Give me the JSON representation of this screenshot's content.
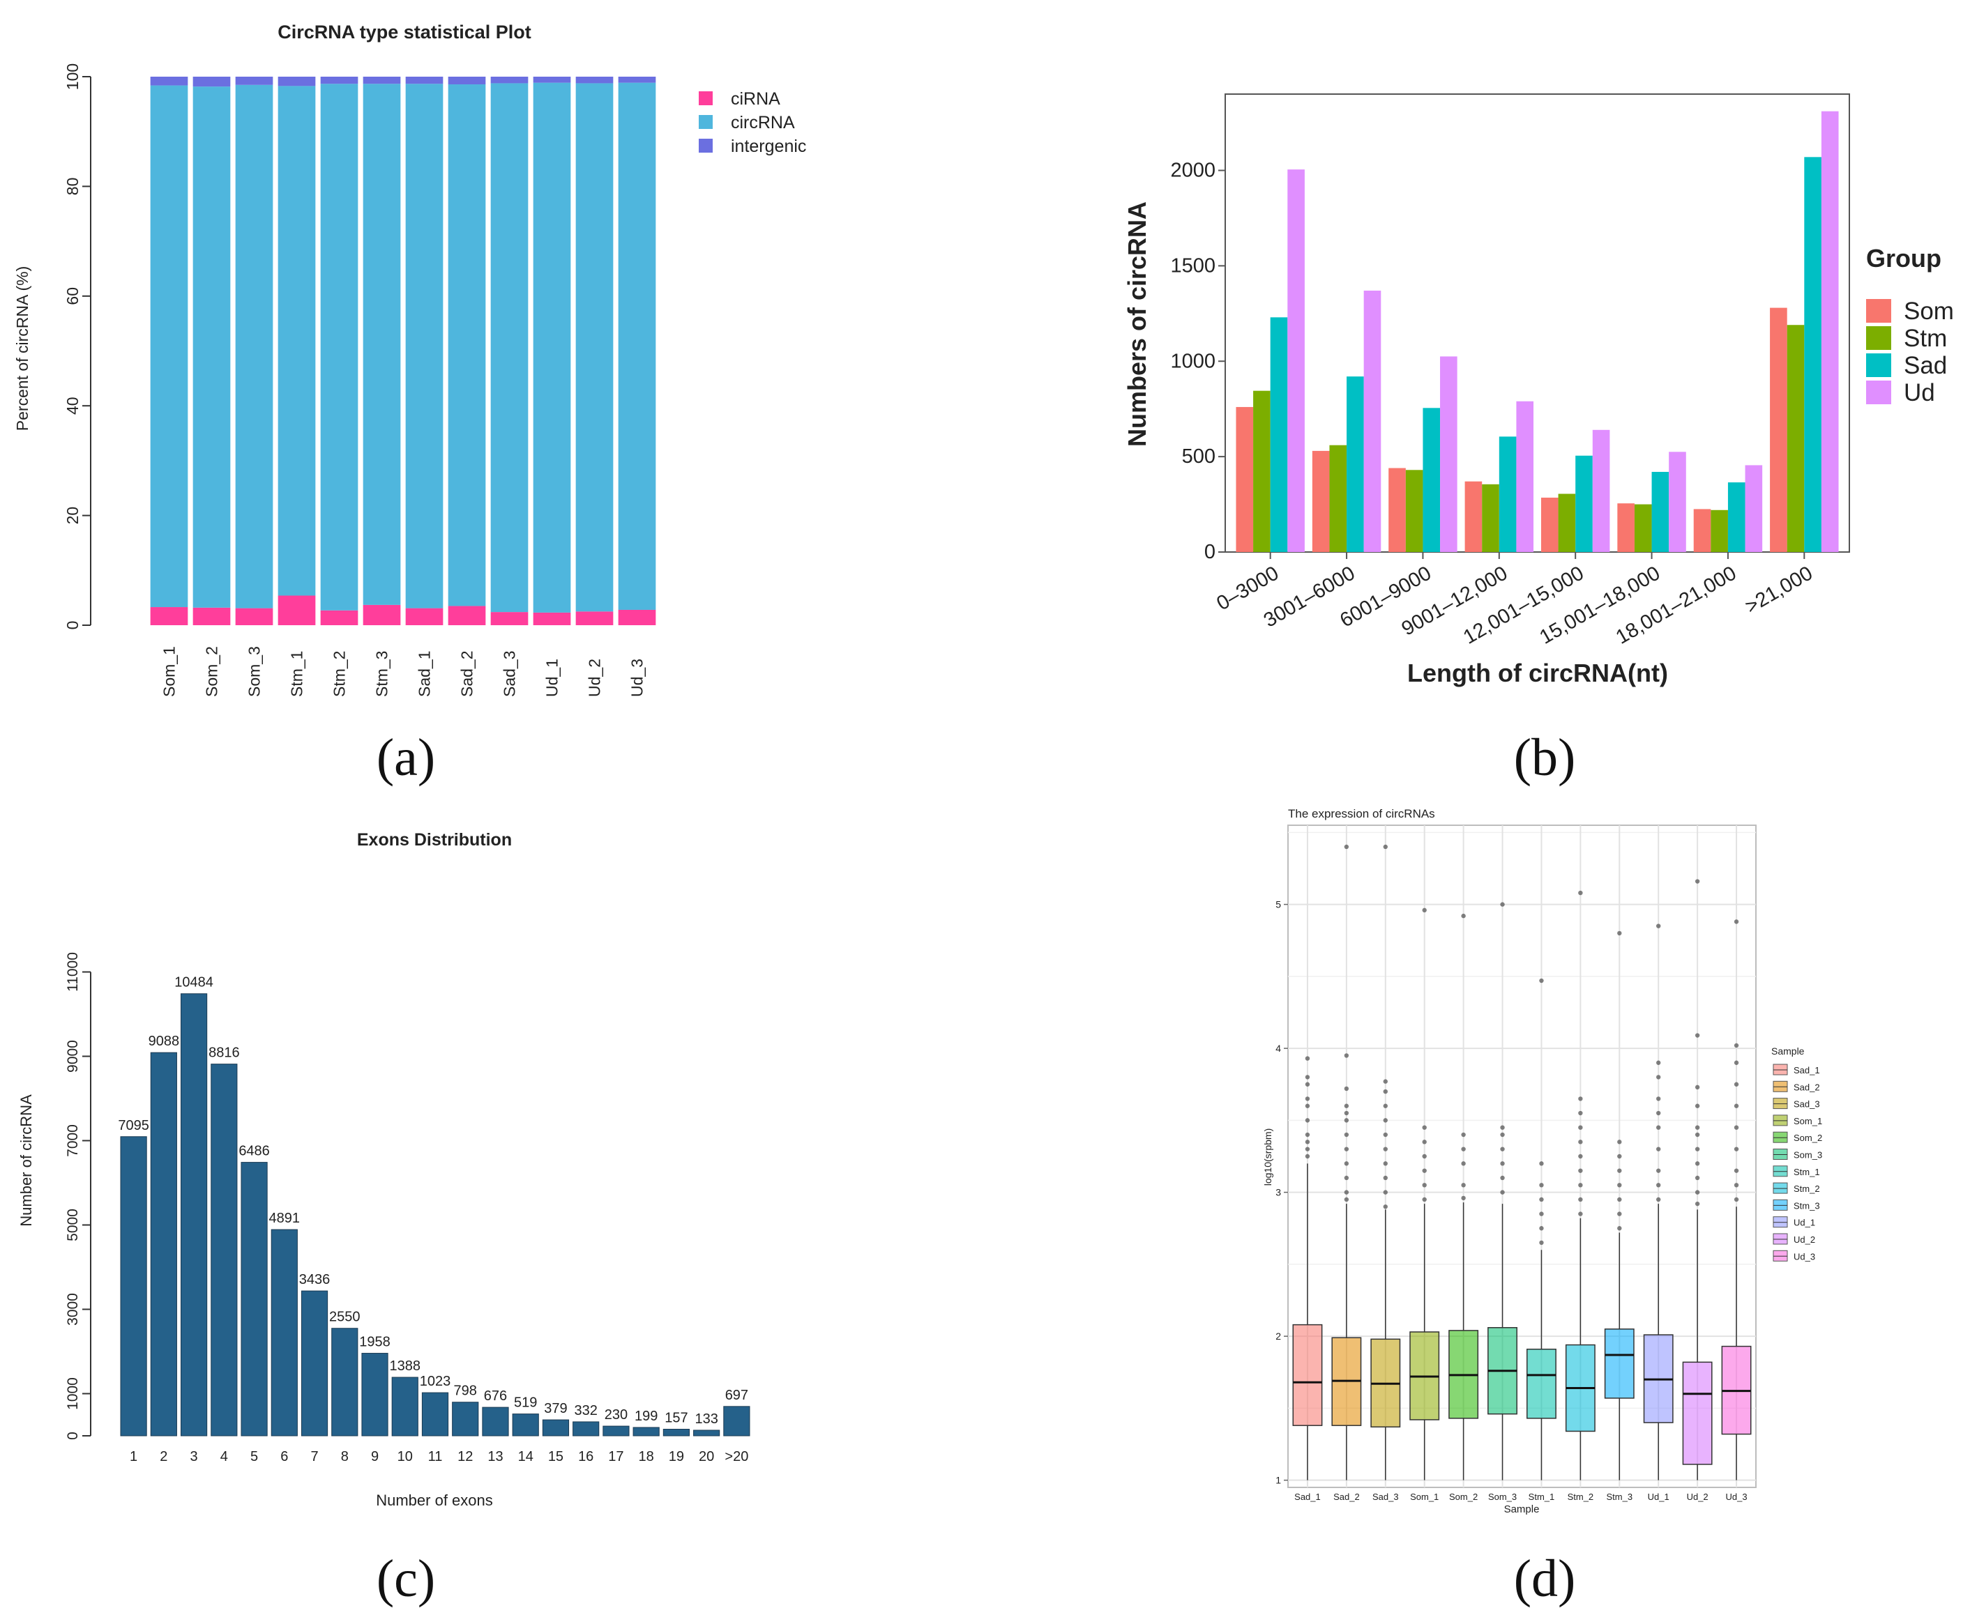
{
  "panels": {
    "a": {
      "label": "(a)"
    },
    "b": {
      "label": "(b)"
    },
    "c": {
      "label": "(c)"
    },
    "d": {
      "label": "(d)"
    }
  },
  "chart_data": [
    {
      "id": "a",
      "type": "bar",
      "stacked": true,
      "title": "CircRNA type statistical Plot",
      "xlabel": "",
      "ylabel": "Percent of circRNA (%)",
      "ylim": [
        0,
        100
      ],
      "yticks": [
        0,
        20,
        40,
        60,
        80,
        100
      ],
      "grid": false,
      "legend": "right",
      "categories": [
        "Som_1",
        "Som_2",
        "Som_3",
        "Stm_1",
        "Stm_2",
        "Stm_3",
        "Sad_1",
        "Sad_2",
        "Sad_3",
        "Ud_1",
        "Ud_2",
        "Ud_3"
      ],
      "series": [
        {
          "name": "ciRNA",
          "color": "#FF3E9B",
          "values": [
            3.3,
            3.2,
            3.1,
            5.4,
            2.7,
            3.7,
            3.1,
            3.5,
            2.4,
            2.3,
            2.5,
            2.8
          ]
        },
        {
          "name": "circRNA",
          "color": "#4FB6DD",
          "values": [
            95.1,
            95.0,
            95.4,
            92.9,
            96.0,
            95.0,
            95.6,
            95.1,
            96.4,
            96.6,
            96.3,
            96.1
          ]
        },
        {
          "name": "intergenic",
          "color": "#6B6FE0",
          "values": [
            1.6,
            1.8,
            1.5,
            1.7,
            1.3,
            1.3,
            1.3,
            1.4,
            1.2,
            1.1,
            1.2,
            1.1
          ]
        }
      ]
    },
    {
      "id": "b",
      "type": "bar",
      "title": "",
      "xlabel": "Length of circRNA(nt)",
      "ylabel": "Numbers of circRNA",
      "ylim": [
        0,
        2400
      ],
      "yticks": [
        0,
        500,
        1000,
        1500,
        2000
      ],
      "grid": false,
      "legend": "right",
      "legend_title": "Group",
      "categories": [
        "0–3000",
        "3001–6000",
        "6001–9000",
        "9001–12,000",
        "12,001–15,000",
        "15,001–18,000",
        "18,001–21,000",
        ">21,000"
      ],
      "series": [
        {
          "name": "Som",
          "color": "#F8766D",
          "values": [
            760,
            530,
            440,
            370,
            285,
            255,
            225,
            1280
          ]
        },
        {
          "name": "Stm",
          "color": "#7CAE00",
          "values": [
            845,
            560,
            430,
            355,
            305,
            250,
            220,
            1190
          ]
        },
        {
          "name": "Sad",
          "color": "#00BFC4",
          "values": [
            1230,
            920,
            755,
            605,
            505,
            420,
            365,
            2070
          ]
        },
        {
          "name": "Ud",
          "color": "#E08FFF",
          "values": [
            2005,
            1370,
            1025,
            790,
            640,
            525,
            455,
            2310
          ]
        }
      ]
    },
    {
      "id": "c",
      "type": "bar",
      "title": "Exons Distribution",
      "xlabel": "Number of exons",
      "ylabel": "Number of circRNA",
      "ylim": [
        0,
        12000
      ],
      "yticks": [
        0,
        1000,
        3000,
        5000,
        7000,
        9000,
        11000
      ],
      "grid": false,
      "color": "#25618A",
      "categories": [
        "1",
        "2",
        "3",
        "4",
        "5",
        "6",
        "7",
        "8",
        "9",
        "10",
        "11",
        "12",
        "13",
        "14",
        "15",
        "16",
        "17",
        "18",
        "19",
        "20",
        ">20"
      ],
      "values": [
        7095,
        9088,
        10484,
        8816,
        6486,
        4891,
        3436,
        2550,
        1958,
        1388,
        1023,
        798,
        676,
        519,
        379,
        332,
        230,
        199,
        157,
        133,
        697
      ],
      "data_labels": [
        "7095",
        "9088",
        "10484",
        "8816",
        "6486",
        "4891",
        "3436",
        "2550",
        "1958",
        "1388",
        "1023",
        "798",
        "676",
        "519",
        "379",
        "332",
        "230",
        "199",
        "157",
        "133",
        "697"
      ]
    },
    {
      "id": "d",
      "type": "box",
      "title": "The expression of circRNAs",
      "xlabel": "Sample",
      "ylabel": "log10(srpbm)",
      "ylim": [
        0.95,
        5.55
      ],
      "yticks": [
        1,
        2,
        3,
        4,
        5
      ],
      "grid": true,
      "legend": "right",
      "legend_title": "Sample",
      "categories": [
        "Sad_1",
        "Sad_2",
        "Sad_3",
        "Som_1",
        "Som_2",
        "Som_3",
        "Stm_1",
        "Stm_2",
        "Stm_3",
        "Ud_1",
        "Ud_2",
        "Ud_3"
      ],
      "series": [
        {
          "name": "Sad_1",
          "color": "#F8766D",
          "q1": 1.38,
          "median": 1.68,
          "q3": 2.08,
          "whisker_low": 1.0,
          "whisker_high": 3.2,
          "outliers": [
            3.25,
            3.3,
            3.35,
            3.4,
            3.5,
            3.6,
            3.65,
            3.75,
            3.8,
            3.93
          ]
        },
        {
          "name": "Sad_2",
          "color": "#E18A00",
          "q1": 1.38,
          "median": 1.69,
          "q3": 1.99,
          "whisker_low": 1.0,
          "whisker_high": 2.92,
          "outliers": [
            2.95,
            3.0,
            3.1,
            3.2,
            3.3,
            3.4,
            3.5,
            3.55,
            3.6,
            3.72,
            3.95,
            5.4
          ]
        },
        {
          "name": "Sad_3",
          "color": "#BE9C00",
          "q1": 1.37,
          "median": 1.67,
          "q3": 1.98,
          "whisker_low": 1.0,
          "whisker_high": 2.88,
          "outliers": [
            2.9,
            3.0,
            3.1,
            3.2,
            3.3,
            3.4,
            3.5,
            3.6,
            3.7,
            3.77,
            5.4
          ]
        },
        {
          "name": "Som_1",
          "color": "#8CAB00",
          "q1": 1.42,
          "median": 1.72,
          "q3": 2.03,
          "whisker_low": 1.0,
          "whisker_high": 2.92,
          "outliers": [
            2.95,
            3.05,
            3.15,
            3.25,
            3.35,
            3.45,
            4.96
          ]
        },
        {
          "name": "Som_2",
          "color": "#24B700",
          "q1": 1.43,
          "median": 1.73,
          "q3": 2.04,
          "whisker_low": 1.0,
          "whisker_high": 2.93,
          "outliers": [
            2.96,
            3.05,
            3.2,
            3.3,
            3.4,
            4.92
          ]
        },
        {
          "name": "Som_3",
          "color": "#00BE70",
          "q1": 1.46,
          "median": 1.76,
          "q3": 2.06,
          "whisker_low": 1.0,
          "whisker_high": 2.92,
          "outliers": [
            3.0,
            3.1,
            3.2,
            3.3,
            3.4,
            3.45,
            5.0
          ]
        },
        {
          "name": "Stm_1",
          "color": "#00C1AB",
          "q1": 1.43,
          "median": 1.73,
          "q3": 1.91,
          "whisker_low": 1.0,
          "whisker_high": 2.6,
          "outliers": [
            2.65,
            2.75,
            2.85,
            2.95,
            3.05,
            3.2,
            4.47
          ]
        },
        {
          "name": "Stm_2",
          "color": "#00BBDA",
          "q1": 1.34,
          "median": 1.64,
          "q3": 1.94,
          "whisker_low": 1.0,
          "whisker_high": 2.82,
          "outliers": [
            2.85,
            2.95,
            3.05,
            3.15,
            3.25,
            3.35,
            3.45,
            3.55,
            3.65,
            5.08
          ]
        },
        {
          "name": "Stm_3",
          "color": "#00ACFC",
          "q1": 1.57,
          "median": 1.87,
          "q3": 2.05,
          "whisker_low": 1.0,
          "whisker_high": 2.72,
          "outliers": [
            2.75,
            2.85,
            2.95,
            3.05,
            3.15,
            3.25,
            3.35,
            4.8
          ]
        },
        {
          "name": "Ud_1",
          "color": "#8B93FF",
          "q1": 1.4,
          "median": 1.7,
          "q3": 2.01,
          "whisker_low": 1.0,
          "whisker_high": 2.92,
          "outliers": [
            2.95,
            3.05,
            3.15,
            3.3,
            3.45,
            3.55,
            3.65,
            3.8,
            3.9,
            4.85
          ]
        },
        {
          "name": "Ud_2",
          "color": "#D575FE",
          "q1": 1.11,
          "median": 1.6,
          "q3": 1.82,
          "whisker_low": 1.0,
          "whisker_high": 2.88,
          "outliers": [
            2.92,
            3.0,
            3.1,
            3.2,
            3.3,
            3.4,
            3.45,
            3.6,
            3.73,
            4.09,
            5.16
          ]
        },
        {
          "name": "Ud_3",
          "color": "#F962DD",
          "q1": 1.32,
          "median": 1.62,
          "q3": 1.93,
          "whisker_low": 1.0,
          "whisker_high": 2.9,
          "outliers": [
            2.95,
            3.05,
            3.15,
            3.3,
            3.45,
            3.6,
            3.75,
            3.9,
            4.02,
            4.88
          ]
        }
      ]
    }
  ]
}
